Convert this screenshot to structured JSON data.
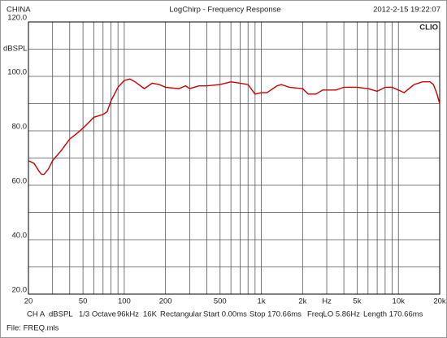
{
  "chart_data": {
    "type": "line",
    "header": [
      "CHINA",
      "LogChirp - Frequency Response",
      "2012-2-15 19:22:07"
    ],
    "brand": "CLIO",
    "ylabel": "dBSPL",
    "xlabel": "Hz",
    "xlabel_at": 3000,
    "log_x": true,
    "grid": true,
    "color": "#cc0000",
    "xlim": [
      20,
      20000
    ],
    "ylim": [
      20,
      120
    ],
    "xticks": [
      20,
      50,
      100,
      200,
      500,
      {
        "value": 1000,
        "label": "1k"
      },
      {
        "value": 2000,
        "label": "2k"
      },
      {
        "value": 5000,
        "label": "5k"
      },
      {
        "value": 10000,
        "label": "10k"
      },
      {
        "value": 20000,
        "label": "20k"
      }
    ],
    "xminor": [
      30,
      40,
      60,
      70,
      80,
      90,
      300,
      400,
      600,
      700,
      800,
      900,
      3000,
      4000,
      6000,
      7000,
      8000,
      9000
    ],
    "yticks": [
      {
        "value": 20,
        "label": "20.0"
      },
      {
        "value": 40,
        "label": "40.0"
      },
      {
        "value": 60,
        "label": "60.0"
      },
      {
        "value": 80,
        "label": "80.0"
      },
      {
        "value": 100,
        "label": "100.0"
      },
      {
        "value": 120,
        "label": "120.0"
      }
    ],
    "yminor": [
      30,
      50,
      70,
      90,
      110
    ],
    "x": [
      20,
      22,
      24,
      25,
      26,
      28,
      30,
      35,
      40,
      45,
      50,
      55,
      60,
      70,
      75,
      80,
      90,
      100,
      110,
      120,
      140,
      160,
      180,
      200,
      250,
      280,
      300,
      350,
      400,
      500,
      600,
      700,
      800,
      900,
      1000,
      1100,
      1300,
      1400,
      1600,
      2000,
      2200,
      2500,
      2800,
      3500,
      4000,
      5000,
      6000,
      7000,
      8000,
      9000,
      10000,
      11000,
      13000,
      15000,
      17000,
      18000,
      19000,
      20000
    ],
    "values": [
      69,
      68,
      65,
      64,
      64,
      66,
      69,
      73,
      77,
      79,
      81,
      83,
      85,
      86,
      87,
      91,
      96,
      98.5,
      99,
      98,
      95.5,
      97.5,
      97,
      96,
      95.5,
      96.5,
      95.5,
      96.5,
      96.5,
      97,
      98,
      97.5,
      97,
      93.5,
      94,
      94,
      96.5,
      97,
      96,
      95.5,
      93.5,
      93.5,
      95,
      95,
      96,
      96,
      95.5,
      94.5,
      96,
      96,
      95,
      94,
      97,
      98,
      98,
      97,
      94,
      90
    ],
    "footer": [
      "CH A",
      "dBSPL",
      "1/3 Octave",
      "96kHz",
      "16K",
      "Rectangular",
      "Start 0.00ms",
      "Stop 170.66ms",
      "FreqLO 5.86Hz",
      "Length 170.66ms"
    ],
    "file": "File: FREQ.mls"
  }
}
